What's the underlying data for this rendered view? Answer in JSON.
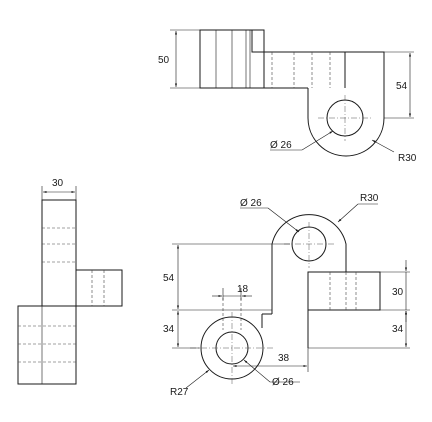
{
  "dimensions": {
    "top_height": "50",
    "top_right_height": "54",
    "top_hole_dia": "Ø 26",
    "top_radius": "R30",
    "side_width": "30",
    "front_upper_hole_dia": "Ø 26",
    "front_upper_radius": "R30",
    "front_54": "54",
    "front_34": "34",
    "front_18": "18",
    "front_right_30": "30",
    "front_right_34": "34",
    "front_38": "38",
    "front_lower_radius": "R27",
    "front_lower_hole_dia": "Ø 26"
  },
  "colors": {
    "line": "#1a1a1a",
    "background": "#ffffff"
  }
}
